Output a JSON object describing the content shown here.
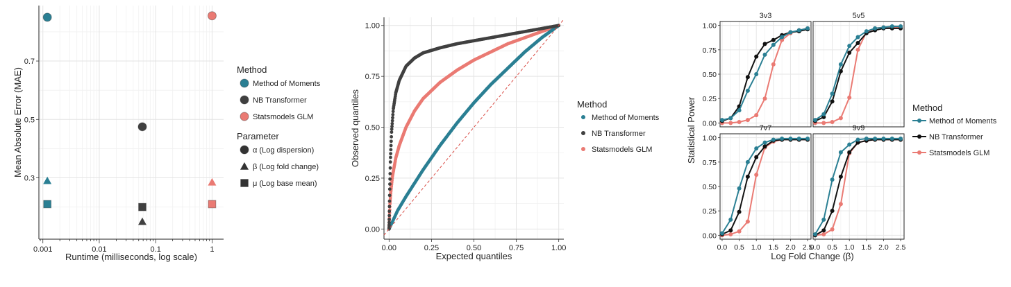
{
  "colors": {
    "mom": "#2a7f93",
    "nb": "#404040",
    "glm": "#ea7a73"
  },
  "chart_data": [
    {
      "type": "scatter",
      "xlabel": "Runtime (milliseconds, log scale)",
      "ylabel": "Mean Absolute Error (MAE)",
      "x_scale": "log",
      "xlim": [
        0.00085,
        1.6
      ],
      "ylim": [
        0.09,
        0.89
      ],
      "x_ticks": [
        0.001,
        0.01,
        0.1,
        1
      ],
      "x_tick_labels": [
        "0.001",
        "0.01",
        "0.1",
        "1"
      ],
      "y_ticks": [
        0.3,
        0.5,
        0.7
      ],
      "y_tick_labels": [
        "0.3",
        "0.5",
        "0.7"
      ],
      "grid": true,
      "legend": {
        "placement": "right",
        "method_title": "Method",
        "methods": [
          "Method of Moments",
          "NB Transformer",
          "Statsmodels GLM"
        ],
        "parameter_title": "Parameter",
        "parameters": [
          "α (Log dispersion)",
          "β (Log fold change)",
          "μ (Log base mean)"
        ]
      },
      "points": [
        {
          "method": 0,
          "param": 0,
          "x": 0.0012,
          "y": 0.85
        },
        {
          "method": 0,
          "param": 1,
          "x": 0.0012,
          "y": 0.29
        },
        {
          "method": 0,
          "param": 2,
          "x": 0.0012,
          "y": 0.21
        },
        {
          "method": 1,
          "param": 0,
          "x": 0.058,
          "y": 0.475
        },
        {
          "method": 1,
          "param": 2,
          "x": 0.058,
          "y": 0.2
        },
        {
          "method": 1,
          "param": 1,
          "x": 0.058,
          "y": 0.15
        },
        {
          "method": 2,
          "param": 0,
          "x": 1.0,
          "y": 0.855
        },
        {
          "method": 2,
          "param": 1,
          "x": 1.0,
          "y": 0.285
        },
        {
          "method": 2,
          "param": 2,
          "x": 1.0,
          "y": 0.21
        }
      ]
    },
    {
      "type": "scatter",
      "xlabel": "Expected quantiles",
      "ylabel": "Observed quantiles",
      "xlim": [
        -0.03,
        1.03
      ],
      "ylim": [
        -0.05,
        1.04
      ],
      "x_ticks": [
        0,
        0.25,
        0.5,
        0.75,
        1
      ],
      "x_tick_labels": [
        "0.00",
        "0.25",
        "0.50",
        "0.75",
        "1.00"
      ],
      "y_ticks": [
        0,
        0.25,
        0.5,
        0.75,
        1
      ],
      "y_tick_labels": [
        "0.00",
        "0.25",
        "0.50",
        "0.75",
        "1.00"
      ],
      "grid": true,
      "reference_line": "y = x (dashed)",
      "legend": {
        "placement": "right",
        "title": "Method",
        "entries": [
          "Method of Moments",
          "NB Transformer",
          "Statsmodels GLM"
        ]
      },
      "series": [
        {
          "method": 0,
          "x": [
            0,
            0.05,
            0.1,
            0.2,
            0.3,
            0.4,
            0.5,
            0.6,
            0.7,
            0.8,
            0.9,
            1.0
          ],
          "y": [
            0,
            0.09,
            0.16,
            0.29,
            0.41,
            0.52,
            0.62,
            0.71,
            0.79,
            0.87,
            0.94,
            1.0
          ]
        },
        {
          "method": 1,
          "x": [
            0,
            0.004,
            0.008,
            0.015,
            0.025,
            0.04,
            0.06,
            0.1,
            0.15,
            0.2,
            0.3,
            0.4,
            0.5,
            0.6,
            0.7,
            0.8,
            0.9,
            1.0
          ],
          "y": [
            0,
            0.2,
            0.34,
            0.48,
            0.59,
            0.67,
            0.73,
            0.8,
            0.84,
            0.865,
            0.89,
            0.91,
            0.925,
            0.94,
            0.955,
            0.97,
            0.985,
            1.0
          ]
        },
        {
          "method": 2,
          "x": [
            0,
            0.005,
            0.01,
            0.02,
            0.04,
            0.06,
            0.1,
            0.15,
            0.2,
            0.3,
            0.4,
            0.5,
            0.6,
            0.7,
            0.8,
            0.9,
            1.0
          ],
          "y": [
            0,
            0.12,
            0.18,
            0.26,
            0.35,
            0.41,
            0.5,
            0.58,
            0.64,
            0.72,
            0.78,
            0.83,
            0.87,
            0.91,
            0.94,
            0.97,
            1.0
          ]
        }
      ]
    },
    {
      "type": "line",
      "xlabel": "Log Fold Change (β)",
      "ylabel": "Statistical Power",
      "xlim": [
        -0.06,
        2.6
      ],
      "ylim": [
        -0.04,
        1.04
      ],
      "x_ticks": [
        0,
        0.5,
        1,
        1.5,
        2,
        2.5
      ],
      "x_tick_labels": [
        "0.0",
        "0.5",
        "1.0",
        "1.5",
        "2.0",
        "2.5"
      ],
      "y_ticks": [
        0,
        0.25,
        0.5,
        0.75,
        1
      ],
      "y_tick_labels": [
        "0.00",
        "0.25",
        "0.50",
        "0.75",
        "1.00"
      ],
      "x": [
        0,
        0.25,
        0.5,
        0.75,
        1.0,
        1.25,
        1.5,
        1.75,
        2.0,
        2.25,
        2.5
      ],
      "legend": {
        "placement": "right",
        "title": "Method",
        "entries": [
          "Method of Moments",
          "NB Transformer",
          "Statsmodels GLM"
        ]
      },
      "panels": [
        {
          "title": "3v3",
          "series": [
            {
              "method": 0,
              "values": [
                0.03,
                0.05,
                0.13,
                0.33,
                0.5,
                0.7,
                0.8,
                0.88,
                0.93,
                0.95,
                0.97
              ]
            },
            {
              "method": 1,
              "values": [
                0.02,
                0.05,
                0.17,
                0.47,
                0.68,
                0.81,
                0.85,
                0.9,
                0.93,
                0.94,
                0.96
              ]
            },
            {
              "method": 2,
              "values": [
                0.0,
                0.0,
                0.01,
                0.03,
                0.08,
                0.25,
                0.6,
                0.85,
                0.92,
                0.95,
                0.97
              ]
            }
          ]
        },
        {
          "title": "5v5",
          "series": [
            {
              "method": 0,
              "values": [
                0.03,
                0.09,
                0.3,
                0.6,
                0.79,
                0.88,
                0.94,
                0.97,
                0.98,
                0.99,
                0.99
              ]
            },
            {
              "method": 1,
              "values": [
                0.02,
                0.06,
                0.22,
                0.53,
                0.72,
                0.82,
                0.92,
                0.95,
                0.97,
                0.97,
                0.97
              ]
            },
            {
              "method": 2,
              "values": [
                0.0,
                0.0,
                0.01,
                0.05,
                0.26,
                0.75,
                0.93,
                0.97,
                0.98,
                0.98,
                0.98
              ]
            }
          ]
        },
        {
          "title": "7v7",
          "series": [
            {
              "method": 0,
              "values": [
                0.02,
                0.16,
                0.48,
                0.75,
                0.89,
                0.95,
                0.98,
                0.99,
                0.99,
                0.99,
                0.99
              ]
            },
            {
              "method": 1,
              "values": [
                0.01,
                0.05,
                0.24,
                0.6,
                0.8,
                0.91,
                0.97,
                0.98,
                0.98,
                0.98,
                0.98
              ]
            },
            {
              "method": 2,
              "values": [
                0.0,
                0.01,
                0.04,
                0.14,
                0.62,
                0.9,
                0.96,
                0.98,
                0.98,
                0.98,
                0.98
              ]
            }
          ]
        },
        {
          "title": "9v9",
          "series": [
            {
              "method": 0,
              "values": [
                0.01,
                0.16,
                0.57,
                0.85,
                0.93,
                0.98,
                0.99,
                0.99,
                0.99,
                0.99,
                0.99
              ]
            },
            {
              "method": 1,
              "values": [
                0.0,
                0.05,
                0.25,
                0.6,
                0.85,
                0.95,
                0.97,
                0.98,
                0.98,
                0.98,
                0.98
              ]
            },
            {
              "method": 2,
              "values": [
                0.0,
                0.01,
                0.06,
                0.32,
                0.84,
                0.95,
                0.97,
                0.98,
                0.98,
                0.98,
                0.98
              ]
            }
          ]
        }
      ]
    }
  ]
}
